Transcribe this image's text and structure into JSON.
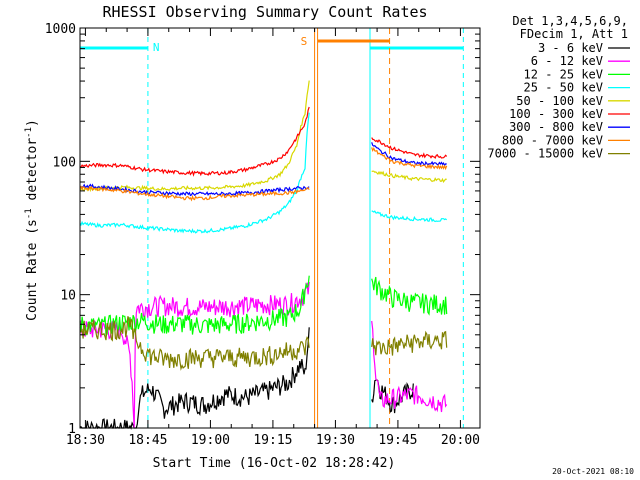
{
  "chart_data": {
    "type": "line",
    "title": "RHESSI Observing Summary Count Rates",
    "xlabel": "Start Time (16-Oct-02 18:28:42)",
    "ylabel_main": "Count Rate (s",
    "ylabel_sup1": "-1",
    "ylabel_mid": " detector",
    "ylabel_sup2": "-1",
    "ylabel_end": ")",
    "y_scale": "log",
    "ylim": [
      1,
      1000
    ],
    "xlim_minutes": [
      0,
      96
    ],
    "x_ticks": [
      {
        "label": "18:30",
        "t": 1.3
      },
      {
        "label": "18:45",
        "t": 16.3
      },
      {
        "label": "19:00",
        "t": 31.3
      },
      {
        "label": "19:15",
        "t": 46.3
      },
      {
        "label": "19:30",
        "t": 61.3
      },
      {
        "label": "19:45",
        "t": 76.3
      },
      {
        "label": "20:00",
        "t": 91.3
      }
    ],
    "y_ticks": [
      {
        "label": "1",
        "v": 1
      },
      {
        "label": "10",
        "v": 10
      },
      {
        "label": "100",
        "v": 100
      },
      {
        "label": "1000",
        "v": 1000
      }
    ],
    "legend_header": [
      "Det 1,3,4,5,6,9,",
      "FDecim 1, Att 1"
    ],
    "legend_position": "right",
    "series": [
      {
        "name": "3 - 6 keV",
        "color": "#000000",
        "points": [
          [
            0,
            1
          ],
          [
            10,
            1
          ],
          [
            13.5,
            1
          ],
          [
            14,
            1.5
          ],
          [
            15,
            1.8
          ],
          [
            17,
            2.0
          ],
          [
            20,
            1.4
          ],
          [
            25,
            1.6
          ],
          [
            30,
            1.5
          ],
          [
            35,
            1.8
          ],
          [
            40,
            1.7
          ],
          [
            45,
            1.9
          ],
          [
            50,
            2.2
          ],
          [
            53,
            3.0
          ],
          [
            54,
            2.5
          ],
          [
            55,
            5.0
          ]
        ],
        "after": [
          [
            70,
            1.6
          ],
          [
            71,
            2.5
          ],
          [
            72,
            2.0
          ],
          [
            75,
            1.5
          ],
          [
            80,
            2.0
          ]
        ]
      },
      {
        "name": "6 - 12 keV",
        "color": "#ff00ff",
        "points": [
          [
            0,
            5.5
          ],
          [
            10,
            5.5
          ],
          [
            11,
            4.5
          ],
          [
            12,
            3.5
          ],
          [
            13,
            1.0
          ],
          [
            13.5,
            8.0
          ],
          [
            20,
            8.3
          ],
          [
            30,
            8.1
          ],
          [
            40,
            8.3
          ],
          [
            45,
            8.5
          ],
          [
            50,
            8.5
          ],
          [
            53,
            9.5
          ],
          [
            55,
            11
          ]
        ],
        "after": [
          [
            70,
            6.0
          ],
          [
            71,
            2.5
          ],
          [
            72,
            1.6
          ],
          [
            80,
            1.8
          ],
          [
            88,
            1.5
          ]
        ]
      },
      {
        "name": "12 - 25 keV",
        "color": "#00ff00",
        "points": [
          [
            0,
            6.0
          ],
          [
            5,
            5.8
          ],
          [
            10,
            6.2
          ],
          [
            15,
            6.4
          ],
          [
            20,
            6.0
          ],
          [
            25,
            6.1
          ],
          [
            30,
            5.9
          ],
          [
            35,
            6.0
          ],
          [
            40,
            6.2
          ],
          [
            45,
            6.5
          ],
          [
            50,
            6.8
          ],
          [
            53,
            8.0
          ],
          [
            55,
            14
          ]
        ],
        "after": [
          [
            70,
            12.5
          ],
          [
            72,
            11
          ],
          [
            75,
            9.5
          ],
          [
            80,
            8.8
          ],
          [
            88,
            8.5
          ]
        ]
      },
      {
        "name": "25 - 50 keV",
        "color": "#00ffff",
        "points": [
          [
            0,
            34
          ],
          [
            5,
            33
          ],
          [
            10,
            33.5
          ],
          [
            15,
            32
          ],
          [
            20,
            31
          ],
          [
            25,
            30
          ],
          [
            30,
            30
          ],
          [
            35,
            31
          ],
          [
            40,
            33
          ],
          [
            45,
            37
          ],
          [
            48,
            42
          ],
          [
            50,
            48
          ],
          [
            52,
            60
          ],
          [
            54,
            90
          ],
          [
            55,
            230
          ]
        ],
        "after": [
          [
            70,
            42
          ],
          [
            72,
            40
          ],
          [
            75,
            38
          ],
          [
            80,
            37
          ],
          [
            88,
            36
          ]
        ]
      },
      {
        "name": "50 - 100 keV",
        "color": "#d8d800",
        "points": [
          [
            0,
            62
          ],
          [
            5,
            63
          ],
          [
            10,
            64
          ],
          [
            15,
            63
          ],
          [
            20,
            62
          ],
          [
            25,
            63
          ],
          [
            30,
            63
          ],
          [
            35,
            64
          ],
          [
            40,
            66
          ],
          [
            45,
            72
          ],
          [
            48,
            80
          ],
          [
            50,
            95
          ],
          [
            52,
            130
          ],
          [
            54,
            230
          ],
          [
            55,
            400
          ]
        ],
        "after": [
          [
            70,
            85
          ],
          [
            72,
            82
          ],
          [
            75,
            78
          ],
          [
            80,
            74
          ],
          [
            88,
            72
          ]
        ]
      },
      {
        "name": "100 - 300 keV",
        "color": "#ff0000",
        "points": [
          [
            0,
            92
          ],
          [
            5,
            94
          ],
          [
            10,
            93
          ],
          [
            15,
            87
          ],
          [
            20,
            84
          ],
          [
            25,
            82
          ],
          [
            30,
            81
          ],
          [
            35,
            82
          ],
          [
            40,
            87
          ],
          [
            45,
            96
          ],
          [
            48,
            105
          ],
          [
            50,
            120
          ],
          [
            52,
            150
          ],
          [
            54,
            190
          ],
          [
            55,
            250
          ]
        ],
        "after": [
          [
            70,
            150
          ],
          [
            72,
            140
          ],
          [
            75,
            125
          ],
          [
            80,
            112
          ],
          [
            88,
            108
          ]
        ]
      },
      {
        "name": "300 - 800 keV",
        "color": "#0000ff",
        "points": [
          [
            0,
            66
          ],
          [
            5,
            64
          ],
          [
            10,
            62
          ],
          [
            15,
            59
          ],
          [
            20,
            58
          ],
          [
            25,
            57
          ],
          [
            30,
            57
          ],
          [
            35,
            57
          ],
          [
            40,
            58
          ],
          [
            45,
            60
          ],
          [
            50,
            62
          ],
          [
            53,
            63
          ],
          [
            55,
            64
          ]
        ],
        "after": [
          [
            70,
            135
          ],
          [
            72,
            120
          ],
          [
            75,
            105
          ],
          [
            80,
            97
          ],
          [
            88,
            95
          ]
        ]
      },
      {
        "name": "800 - 7000 keV",
        "color": "#ff8000",
        "points": [
          [
            0,
            63
          ],
          [
            5,
            62
          ],
          [
            10,
            60
          ],
          [
            15,
            57
          ],
          [
            20,
            55
          ],
          [
            25,
            53
          ],
          [
            30,
            53
          ],
          [
            35,
            55
          ],
          [
            40,
            56
          ],
          [
            45,
            57
          ],
          [
            50,
            58
          ],
          [
            53,
            60
          ],
          [
            55,
            62
          ]
        ],
        "after": [
          [
            70,
            125
          ],
          [
            72,
            113
          ],
          [
            75,
            100
          ],
          [
            80,
            93
          ],
          [
            88,
            90
          ]
        ]
      },
      {
        "name": "7000 - 15000 keV",
        "color": "#808000",
        "points": [
          [
            0,
            5.5
          ],
          [
            10,
            5.5
          ],
          [
            12,
            6.0
          ],
          [
            13,
            4.8
          ],
          [
            15,
            4.0
          ],
          [
            17,
            3.5
          ],
          [
            20,
            3.3
          ],
          [
            30,
            3.4
          ],
          [
            40,
            3.4
          ],
          [
            45,
            3.5
          ],
          [
            50,
            3.8
          ],
          [
            54,
            4.0
          ],
          [
            55,
            4.5
          ]
        ],
        "after": [
          [
            70,
            4.2
          ],
          [
            72,
            4.0
          ],
          [
            75,
            4.1
          ],
          [
            80,
            4.4
          ],
          [
            88,
            4.6
          ]
        ]
      }
    ],
    "annotations": [
      {
        "label": "N",
        "color": "#00ffff"
      },
      {
        "label": "S",
        "color": "#ff8000"
      }
    ],
    "night_intervals": [
      [
        0,
        16.3
      ],
      [
        69.6,
        92
      ]
    ],
    "saa_interval": [
      56.3,
      74.3
    ]
  },
  "footer_date": "20-Oct-2021 08:10",
  "colors": {
    "night": "#00ffff",
    "saa": "#ff8000",
    "axis": "#000000"
  }
}
